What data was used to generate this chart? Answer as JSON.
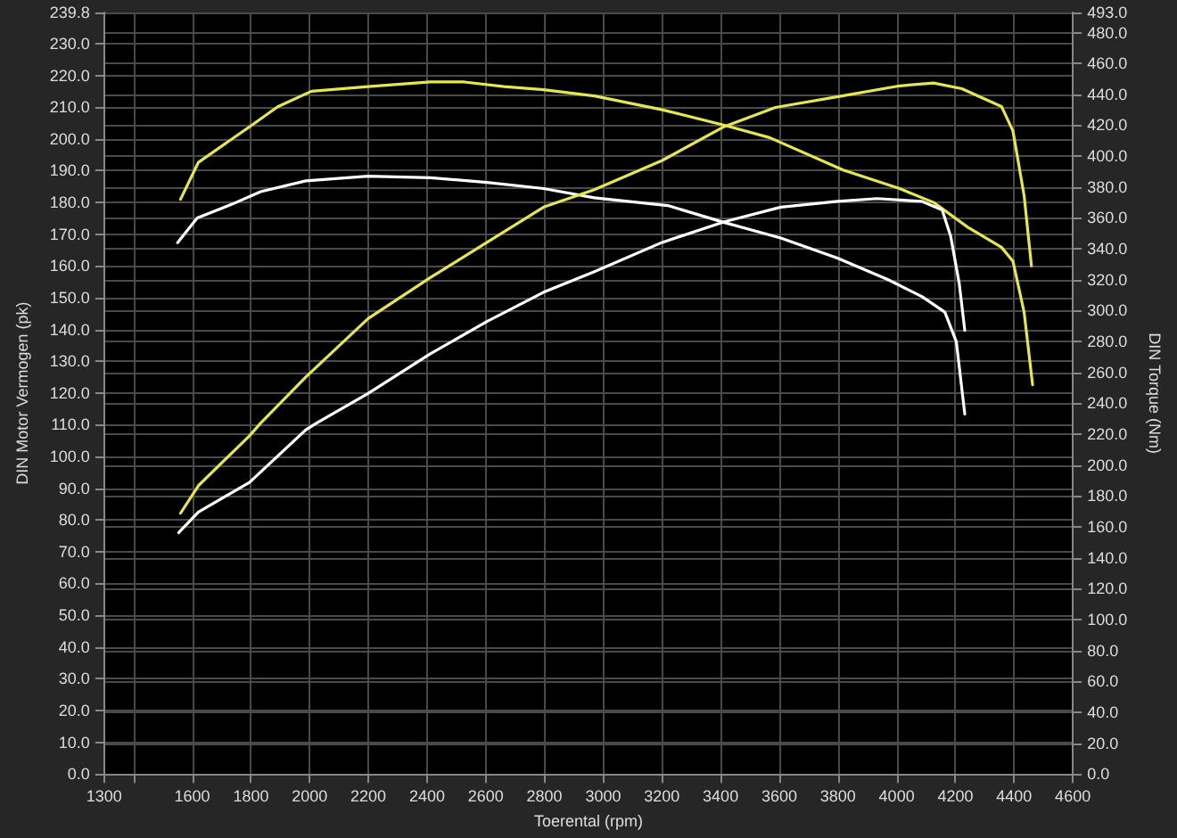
{
  "chart_data": {
    "type": "line",
    "xlabel": "Toerental (rpm)",
    "ylabel": "DIN Motor Vermogen (pk)",
    "y2label": "DIN Torque (Nm)",
    "xlim": [
      1300,
      4600
    ],
    "xticks": [
      1300,
      {
        "value": 1400,
        "label": null
      },
      1600,
      1800,
      2000,
      2200,
      2400,
      2600,
      2800,
      3000,
      3200,
      3400,
      3600,
      3800,
      4000,
      4200,
      4400,
      4600
    ],
    "ylim": [
      0,
      239.8
    ],
    "yticks": [
      {
        "value": 0,
        "label": "0.0"
      },
      {
        "value": 10,
        "label": "10.0"
      },
      {
        "value": 20,
        "label": "20.0"
      },
      {
        "value": 30,
        "label": "30.0"
      },
      {
        "value": 40,
        "label": "40.0"
      },
      {
        "value": 50,
        "label": "50.0"
      },
      {
        "value": 60,
        "label": "60.0"
      },
      {
        "value": 70,
        "label": "70.0"
      },
      {
        "value": 80,
        "label": "80.0"
      },
      {
        "value": 90,
        "label": "90.0"
      },
      {
        "value": 100,
        "label": "100.0"
      },
      {
        "value": 110,
        "label": "110.0"
      },
      {
        "value": 120,
        "label": "120.0"
      },
      {
        "value": 130,
        "label": "130.0"
      },
      {
        "value": 140,
        "label": "140.0"
      },
      {
        "value": 150,
        "label": "150.0"
      },
      {
        "value": 160,
        "label": "160.0"
      },
      {
        "value": 170,
        "label": "170.0"
      },
      {
        "value": 180,
        "label": "180.0"
      },
      {
        "value": 190,
        "label": "190.0"
      },
      {
        "value": 200,
        "label": "200.0"
      },
      {
        "value": 210,
        "label": "210.0"
      },
      {
        "value": 220,
        "label": "220.0"
      },
      {
        "value": 230,
        "label": "230.0"
      },
      {
        "value": 239.8,
        "label": "239.8"
      }
    ],
    "y2lim": [
      0,
      493
    ],
    "y2ticks": [
      {
        "value": 0,
        "label": "0.0"
      },
      {
        "value": 20,
        "label": "20.0"
      },
      {
        "value": 40,
        "label": "40.0"
      },
      {
        "value": 60,
        "label": "60.0"
      },
      {
        "value": 80,
        "label": "80.0"
      },
      {
        "value": 100,
        "label": "100.0"
      },
      {
        "value": 120,
        "label": "120.0"
      },
      {
        "value": 140,
        "label": "140.0"
      },
      {
        "value": 160,
        "label": "160.0"
      },
      {
        "value": 180,
        "label": "180.0"
      },
      {
        "value": 200,
        "label": "200.0"
      },
      {
        "value": 220,
        "label": "220.0"
      },
      {
        "value": 240,
        "label": "240.0"
      },
      {
        "value": 260,
        "label": "260.0"
      },
      {
        "value": 280,
        "label": "280.0"
      },
      {
        "value": 300,
        "label": "300.0"
      },
      {
        "value": 320,
        "label": "320.0"
      },
      {
        "value": 340,
        "label": "340.0"
      },
      {
        "value": 360,
        "label": "360.0"
      },
      {
        "value": 380,
        "label": "380.0"
      },
      {
        "value": 400,
        "label": "400.0"
      },
      {
        "value": 420,
        "label": "420.0"
      },
      {
        "value": 440,
        "label": "440.0"
      },
      {
        "value": 460,
        "label": "460.0"
      },
      {
        "value": 480,
        "label": "480.0"
      },
      {
        "value": 493,
        "label": "493.0"
      }
    ],
    "grid": true,
    "marker": "none",
    "line_style": "solid",
    "series": [
      {
        "color": "#e6e650",
        "axis": "y2",
        "x": [
          1560,
          1621,
          1795,
          1891,
          2006,
          2199,
          2411,
          2527,
          2662,
          2797,
          2970,
          3201,
          3413,
          3567,
          3818,
          4010,
          4126,
          4242,
          4357,
          4396,
          4434,
          4463
        ],
        "values": [
          372,
          396,
          419,
          432,
          442,
          445,
          448,
          448,
          445,
          443,
          439,
          430,
          420,
          412,
          391,
          379,
          370,
          354,
          341,
          332,
          299,
          252
        ]
      },
      {
        "color": "#ffffff",
        "axis": "y2",
        "x": [
          1550,
          1617,
          1737,
          1833,
          1987,
          2199,
          2411,
          2604,
          2797,
          2970,
          3220,
          3413,
          3605,
          3798,
          3971,
          4087,
          4164,
          4203,
          4232
        ],
        "values": [
          344,
          360,
          369,
          377,
          384,
          387,
          386,
          383,
          379,
          373,
          368,
          357,
          347,
          334,
          320,
          309,
          299,
          280,
          233
        ]
      },
      {
        "color": "#e6e650",
        "axis": "y",
        "x": [
          1560,
          1621,
          1795,
          1833,
          1987,
          2199,
          2411,
          2604,
          2797,
          2970,
          3201,
          3413,
          3587,
          3818,
          4010,
          4126,
          4222,
          4357,
          4396,
          4434,
          4459
        ],
        "values": [
          82.1,
          90.8,
          106.5,
          110.5,
          125,
          143.4,
          156.3,
          167.4,
          178.5,
          184,
          193.2,
          203.9,
          209.9,
          213.6,
          216.7,
          217.6,
          215.8,
          210.2,
          202.5,
          182.2,
          160
        ]
      },
      {
        "color": "#ffffff",
        "axis": "y",
        "x": [
          1554,
          1621,
          1795,
          1987,
          2026,
          2199,
          2411,
          2604,
          2797,
          2970,
          3201,
          3413,
          3605,
          3798,
          3933,
          4087,
          4155,
          4184,
          4213,
          4232
        ],
        "values": [
          76,
          82.5,
          91.8,
          108.4,
          110.6,
          119.8,
          132.3,
          142.5,
          151.7,
          158.2,
          167.4,
          173.9,
          178.5,
          180.3,
          181.2,
          180.3,
          177.6,
          169.3,
          154.5,
          139.7
        ]
      }
    ]
  }
}
